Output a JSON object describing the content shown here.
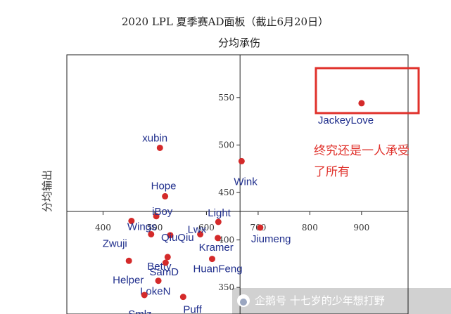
{
  "chart_data": {
    "type": "scatter",
    "title": "2020 LPL 夏季赛AD面板（截止6月20日）",
    "xlabel": "分均承伤",
    "ylabel": "分均输出",
    "xlim": [
      330,
      990
    ],
    "ylim": [
      322,
      595
    ],
    "x_ticks": [
      400,
      500,
      600,
      700,
      800,
      900
    ],
    "y_ticks": [
      350,
      400,
      450,
      500,
      550
    ],
    "crosshair": {
      "x": 665,
      "y": 430
    },
    "grid": false,
    "points": [
      {
        "name": "JackeyLove",
        "x": 900,
        "y": 544
      },
      {
        "name": "xubin",
        "x": 510,
        "y": 497
      },
      {
        "name": "Wink",
        "x": 668,
        "y": 483
      },
      {
        "name": "Hope",
        "x": 520,
        "y": 446
      },
      {
        "name": "iBoy",
        "x": 503,
        "y": 425
      },
      {
        "name": "Wings",
        "x": 455,
        "y": 420
      },
      {
        "name": "Light",
        "x": 623,
        "y": 419
      },
      {
        "name": "Lwx",
        "x": 588,
        "y": 406
      },
      {
        "name": "Jiumeng",
        "x": 704,
        "y": 413
      },
      {
        "name": "Zwuji",
        "x": 493,
        "y": 406
      },
      {
        "name": "QiuQiu",
        "x": 530,
        "y": 405
      },
      {
        "name": "Kramer",
        "x": 622,
        "y": 402
      },
      {
        "name": "Betty",
        "x": 525,
        "y": 382
      },
      {
        "name": "HuanFeng",
        "x": 611,
        "y": 380
      },
      {
        "name": "Helper",
        "x": 450,
        "y": 378
      },
      {
        "name": "SamD",
        "x": 521,
        "y": 376
      },
      {
        "name": "LokeN",
        "x": 507,
        "y": 357
      },
      {
        "name": "Smlz",
        "x": 480,
        "y": 342
      },
      {
        "name": "Puff",
        "x": 555,
        "y": 340
      }
    ]
  },
  "annotation": {
    "highlight": "JackeyLove",
    "line1": "终究还是一人承受",
    "line2": "了所有"
  },
  "watermark": {
    "text": "企鹅号 十七岁的少年想打野"
  },
  "colors": {
    "point": "#d42a2a",
    "label": "#1f2e8c",
    "highlight_box": "#e0312b",
    "note": "#e0312b",
    "axis": "#222222"
  }
}
